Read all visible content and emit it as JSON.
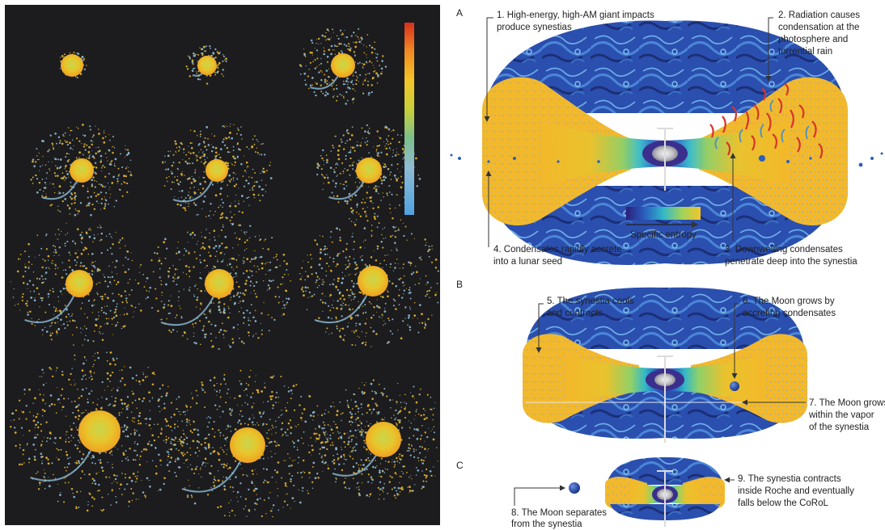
{
  "colors": {
    "background_left": "#1c1c1e",
    "yellow": "#f2c12e",
    "blue_gray": "#8fb8d6",
    "deep_blue": "#1a3f9a",
    "arrow": "#333333"
  },
  "panels": {
    "A": {
      "letter": "A",
      "annotations": {
        "a1": [
          "1. High-energy, high-AM giant impacts",
          "produce synestias"
        ],
        "a2": [
          "2. Radiation causes",
          "condensation at the",
          "photosphere and",
          "torrential rain"
        ],
        "a3": [
          "3. Downwelling condensates",
          "penetrate deep into the synestia"
        ],
        "a4": [
          "4. Condensates rapidly accrete",
          "into a lunar seed"
        ]
      },
      "colorbar_label": "Specific entropy"
    },
    "B": {
      "letter": "B",
      "annotations": {
        "a5": [
          "5. The synestia cools",
          "and contracts"
        ],
        "a6": [
          "6. The Moon grows by",
          "accreting condensates"
        ],
        "a7": [
          "7. The Moon grows",
          "within the vapor",
          "of the synestia"
        ]
      }
    },
    "C": {
      "letter": "C",
      "annotations": {
        "a8": [
          "8. The Moon separates",
          "from the synestia"
        ],
        "a9": [
          "9. The synestia contracts",
          "inside Roche and eventually",
          "falls below the CoRoL"
        ]
      }
    }
  }
}
